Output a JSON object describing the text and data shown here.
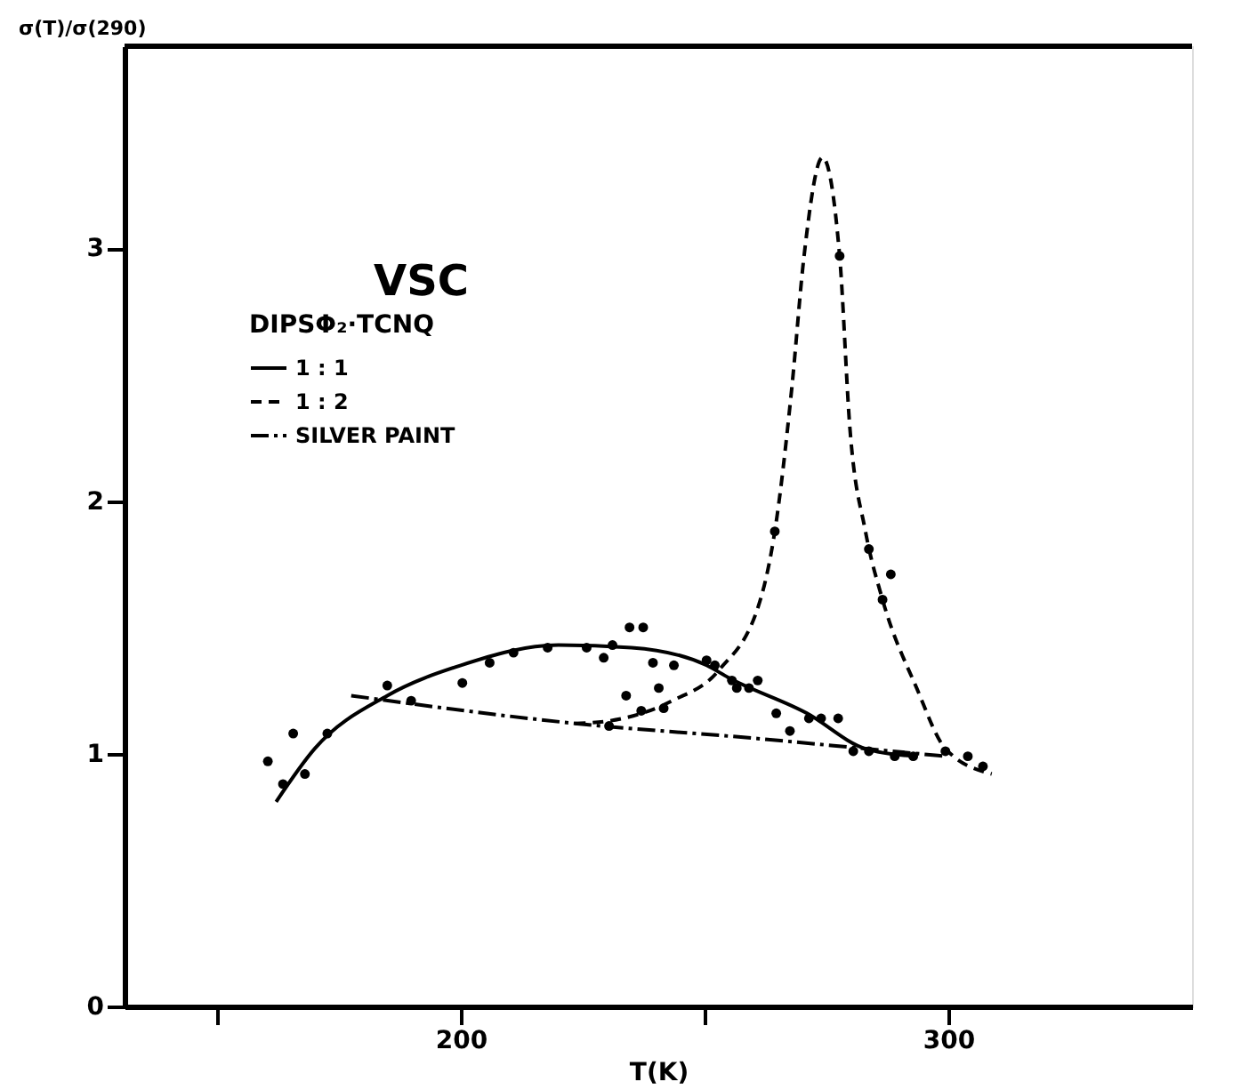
{
  "chart_data": {
    "type": "line",
    "annotations": [
      "VSC"
    ],
    "legend_title": "DIPSΦ₂·TCNQ",
    "xlabel": "T(K)",
    "ylabel": "σ(T)/σ(290)",
    "xlim": [
      131,
      350
    ],
    "xticks": [
      {
        "value": 150,
        "label": null
      },
      200,
      {
        "value": 250,
        "label": null
      },
      300
    ],
    "ylim": [
      0,
      3.8
    ],
    "yticks": [
      0,
      1,
      2,
      3
    ],
    "grid": false,
    "legend": "top left",
    "series": [
      {
        "name": "1 : 1",
        "color": "#000000",
        "line_style": "solid",
        "x": [
          162.1,
          170,
          184.9,
          200,
          220,
          235,
          250.4,
          255,
          271,
          283,
          293.5
        ],
        "values": [
          0.81,
          1.02,
          1.23,
          1.35,
          1.43,
          1.42,
          1.35,
          1.3,
          1.16,
          1.02,
          0.99
        ]
      },
      {
        "name": "1 : 2",
        "color": "#000000",
        "line_style": "dashed",
        "x": [
          223.4,
          230.4,
          243.4,
          252.9,
          261.6,
          264.4,
          267.9,
          270.4,
          274.2,
          277.7,
          279.8,
          283,
          286.5,
          293.5,
          299.4,
          308.9
        ],
        "values": [
          1.12,
          1.13,
          1.21,
          1.33,
          1.62,
          1.88,
          2.45,
          2.97,
          3.36,
          2.97,
          2.29,
          1.88,
          1.61,
          1.26,
          1.02,
          0.92
        ]
      },
      {
        "name": "SILVER PAINT",
        "color": "#000000",
        "line_style": "dotted",
        "x": [
          177.5,
          223.4,
          260.9,
          283,
          299.4
        ],
        "values": [
          1.23,
          1.12,
          1.06,
          1.02,
          0.99
        ]
      },
      {
        "type": "scatter",
        "color": "#000000",
        "marker": "circle",
        "x": [
          160.4,
          163.5,
          165.6,
          168,
          172.6,
          184.9,
          189.8,
          200.3,
          205.9,
          210.8,
          217.8,
          225.8,
          229.3,
          230.4,
          231.1,
          233.9,
          234.6,
          237,
          237.4,
          239.4,
          240.6,
          241.6,
          243.7,
          250.4,
          252.1,
          255.6,
          256.6,
          259.1,
          260.9,
          264.4,
          264.7,
          267.5,
          271.4,
          273.9,
          277.4,
          277.7,
          280.5,
          283.7,
          283.7,
          286.5,
          288.2,
          289,
          292.8,
          299.4,
          304,
          307.1
        ],
        "values": [
          0.97,
          0.88,
          1.08,
          0.92,
          1.08,
          1.27,
          1.21,
          1.28,
          1.36,
          1.4,
          1.42,
          1.42,
          1.38,
          1.11,
          1.43,
          1.23,
          1.5,
          1.17,
          1.5,
          1.36,
          1.26,
          1.18,
          1.35,
          1.37,
          1.35,
          1.29,
          1.26,
          1.26,
          1.29,
          1.88,
          1.16,
          1.09,
          1.14,
          1.14,
          1.14,
          2.97,
          1.01,
          1.01,
          1.81,
          1.61,
          1.71,
          0.99,
          0.99,
          1.01,
          0.99,
          0.95
        ]
      }
    ]
  }
}
